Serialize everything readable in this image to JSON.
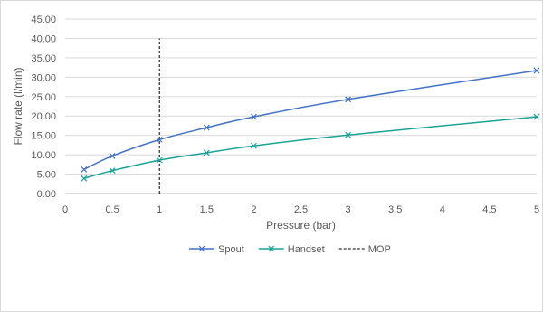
{
  "chart_data": {
    "type": "line",
    "title": "",
    "xlabel": "Pressure (bar)",
    "ylabel": "Flow rate (l/min)",
    "xlim": [
      0,
      5
    ],
    "ylim": [
      0,
      45
    ],
    "x_ticks": [
      "0",
      "0.5",
      "1",
      "1.5",
      "2",
      "2.5",
      "3",
      "3.5",
      "4",
      "4.5",
      "5"
    ],
    "y_ticks": [
      "0.00",
      "5.00",
      "10.00",
      "15.00",
      "20.00",
      "25.00",
      "30.00",
      "35.00",
      "40.00",
      "45.00"
    ],
    "grid": "horizontal",
    "legend_position": "bottom",
    "series": [
      {
        "name": "Spout",
        "color": "#4472c4",
        "marker": "x",
        "points": [
          [
            0.2,
            6.2
          ],
          [
            0.5,
            9.7
          ],
          [
            1,
            13.9
          ],
          [
            1.5,
            17.0
          ],
          [
            2,
            19.8
          ],
          [
            3,
            24.3
          ],
          [
            5,
            31.7
          ]
        ]
      },
      {
        "name": "Handset",
        "color": "#1aa396",
        "marker": "x",
        "points": [
          [
            0.2,
            3.9
          ],
          [
            0.5,
            5.9
          ],
          [
            1,
            8.6
          ],
          [
            1.5,
            10.5
          ],
          [
            2,
            12.3
          ],
          [
            3,
            15.1
          ],
          [
            5,
            19.8
          ]
        ]
      }
    ],
    "reference_lines": [
      {
        "name": "MOP",
        "axis": "x",
        "value": 1,
        "from": 0,
        "to": 40,
        "style": "dashed",
        "color": "#000000"
      }
    ]
  }
}
